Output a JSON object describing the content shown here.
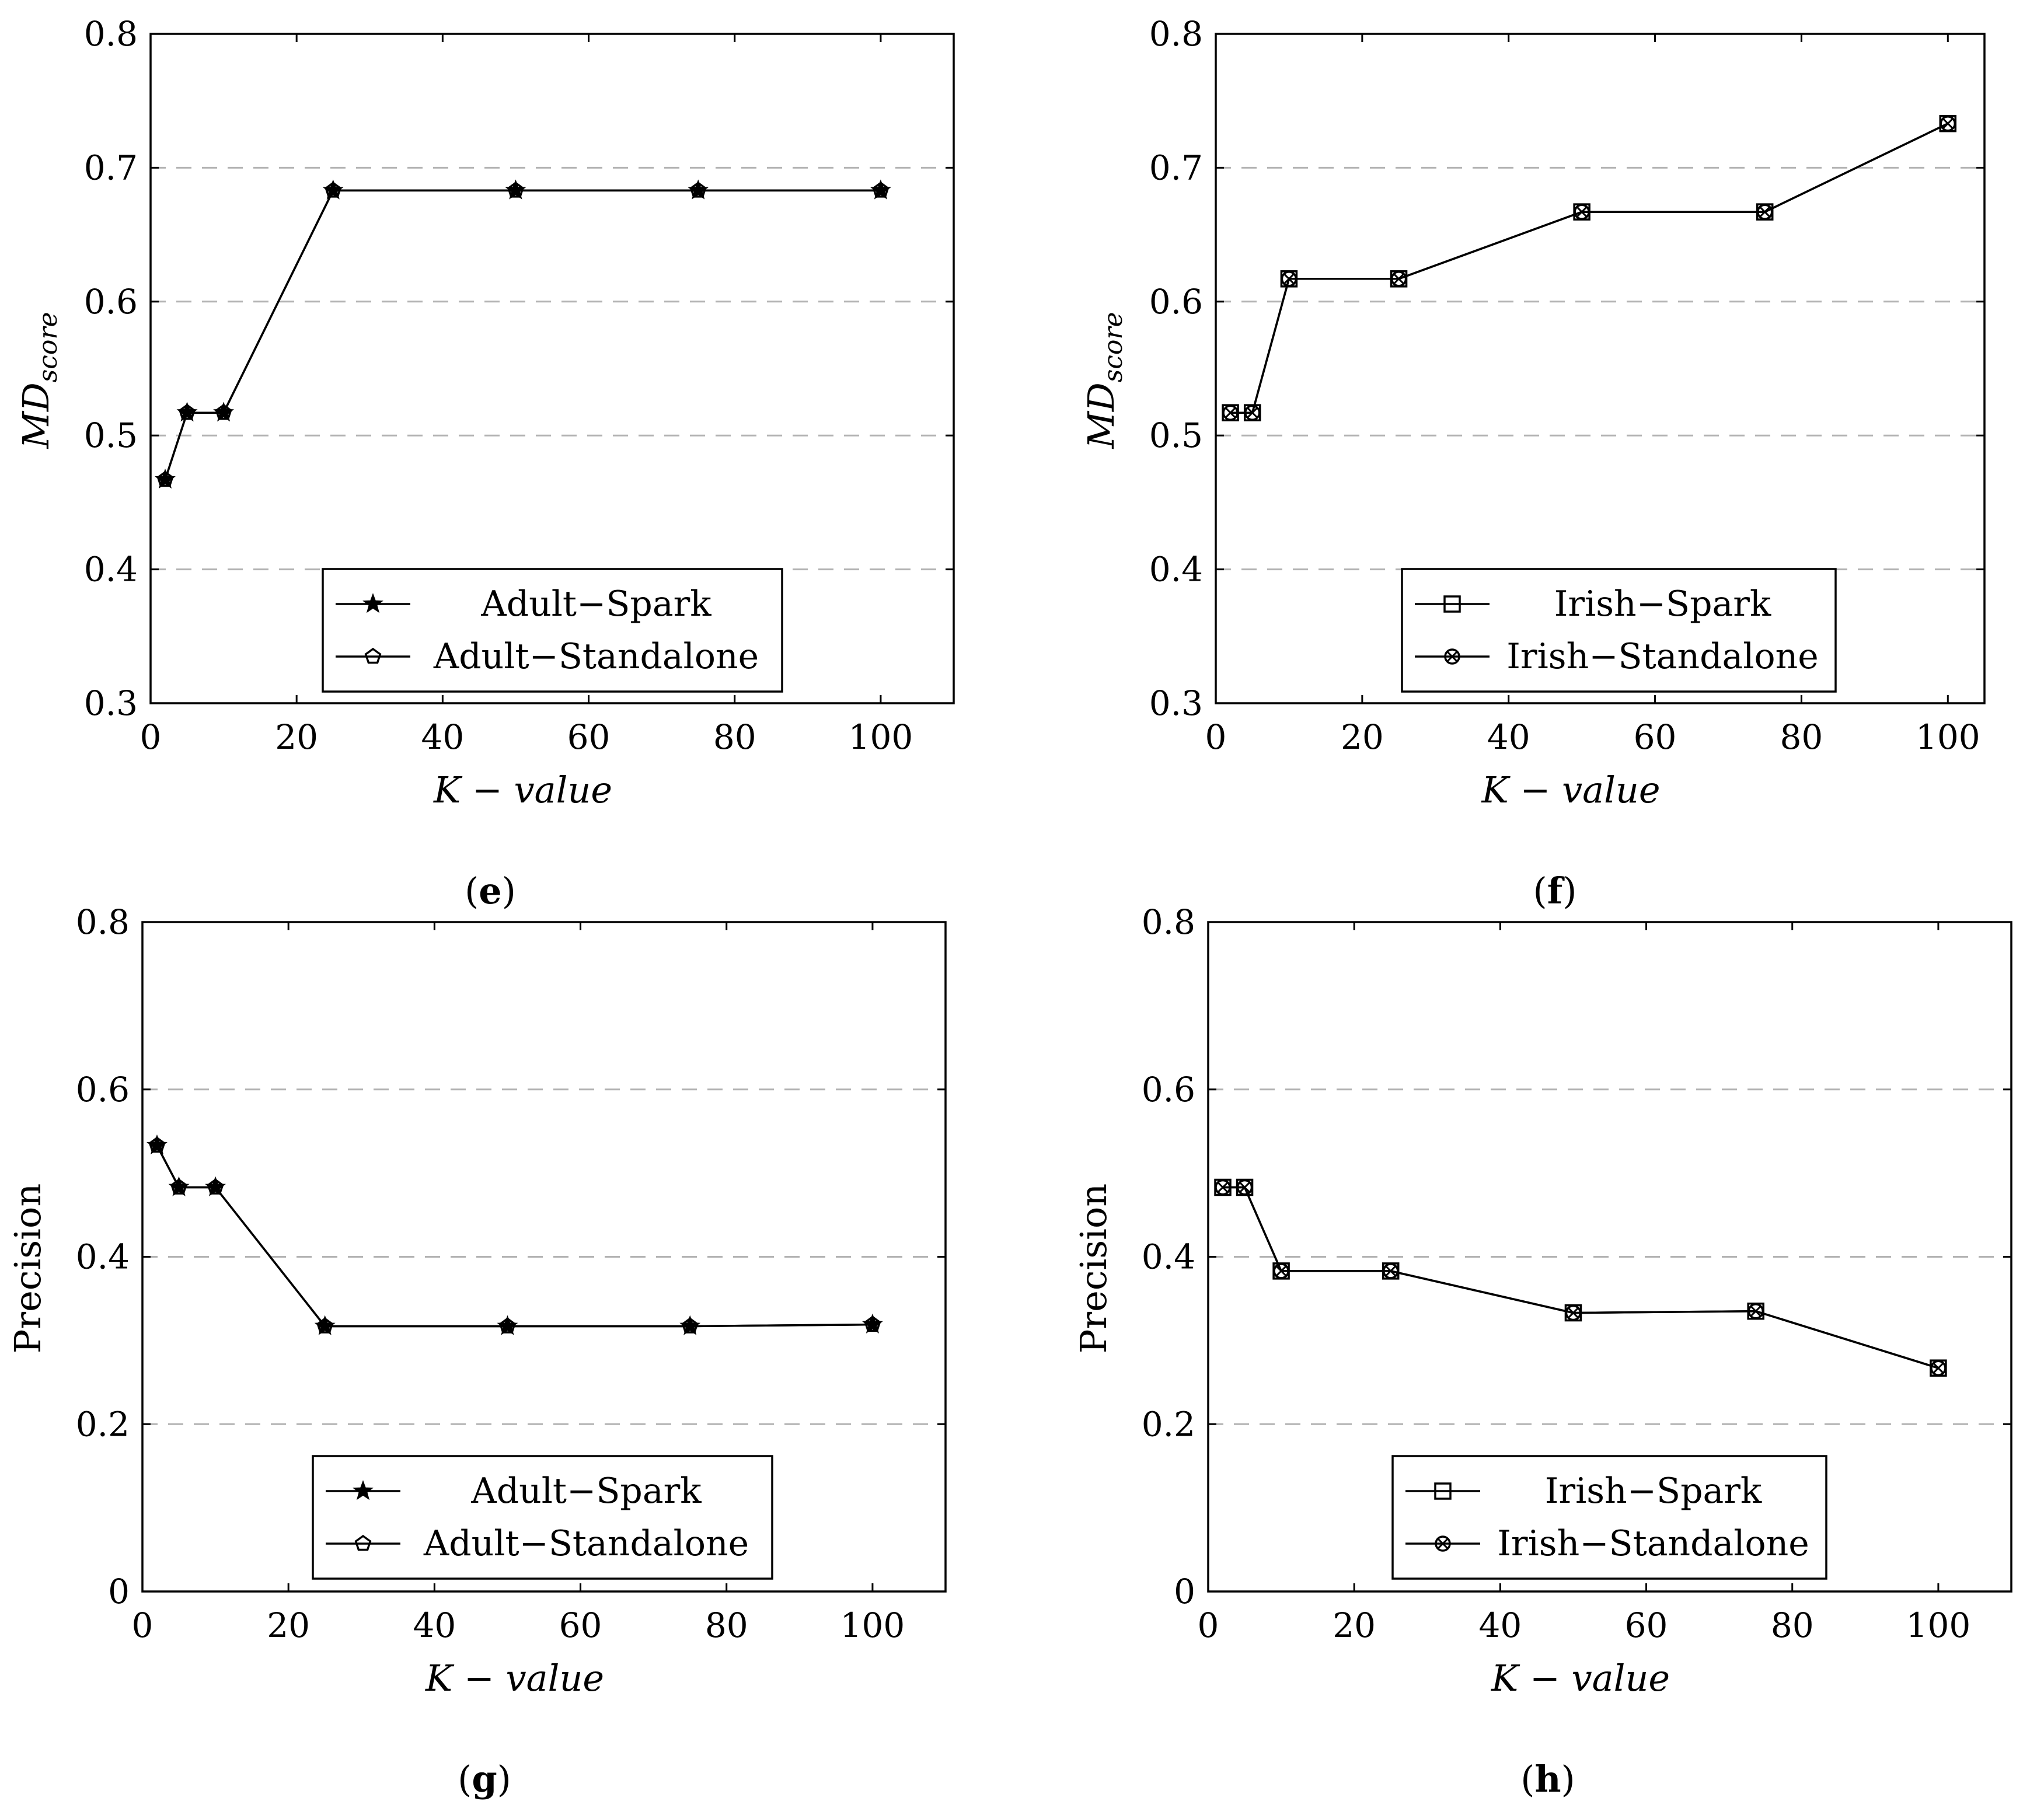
{
  "chart_data": [
    {
      "type": "line",
      "panel": "e",
      "caption_letter": "e",
      "xlabel": "K − value",
      "ylabel_main": "MD",
      "ylabel_sub": "score",
      "xlim": [
        0,
        110
      ],
      "ylim": [
        0.3,
        0.8
      ],
      "xticks": [
        0,
        20,
        40,
        60,
        80,
        100
      ],
      "yticks": [
        0.3,
        0.4,
        0.5,
        0.6,
        0.7,
        0.8
      ],
      "ytick_labels": [
        "0.3",
        "0.4",
        "0.5",
        "0.6",
        "0.7",
        "0.8"
      ],
      "grid": "horizontal-dashed",
      "legend_position": "bottom-center",
      "x": [
        2,
        5,
        10,
        25,
        50,
        75,
        100
      ],
      "series": [
        {
          "name": "Adult−Spark",
          "marker": "star",
          "values": [
            0.467,
            0.517,
            0.517,
            0.683,
            0.683,
            0.683,
            0.683
          ]
        },
        {
          "name": "Adult−Standalone",
          "marker": "pentagon",
          "values": [
            0.467,
            0.517,
            0.517,
            0.683,
            0.683,
            0.683,
            0.683
          ]
        }
      ]
    },
    {
      "type": "line",
      "panel": "f",
      "caption_letter": "f",
      "xlabel": "K − value",
      "ylabel_main": "MD",
      "ylabel_sub": "score",
      "xlim": [
        0,
        105
      ],
      "ylim": [
        0.3,
        0.8
      ],
      "xticks": [
        0,
        20,
        40,
        60,
        80,
        100
      ],
      "yticks": [
        0.3,
        0.4,
        0.5,
        0.6,
        0.7,
        0.8
      ],
      "ytick_labels": [
        "0.3",
        "0.4",
        "0.5",
        "0.6",
        "0.7",
        "0.8"
      ],
      "grid": "horizontal-dashed",
      "legend_position": "bottom-center",
      "x": [
        2,
        5,
        10,
        25,
        50,
        75,
        100
      ],
      "series": [
        {
          "name": "Irish−Spark",
          "marker": "square",
          "values": [
            0.517,
            0.517,
            0.617,
            0.617,
            0.667,
            0.667,
            0.733
          ]
        },
        {
          "name": "Irish−Standalone",
          "marker": "otimes",
          "values": [
            0.517,
            0.517,
            0.617,
            0.617,
            0.667,
            0.667,
            0.733
          ]
        }
      ]
    },
    {
      "type": "line",
      "panel": "g",
      "caption_letter": "g",
      "xlabel": "K − value",
      "ylabel": "Precision",
      "xlim": [
        0,
        110
      ],
      "ylim": [
        0,
        0.8
      ],
      "xticks": [
        0,
        20,
        40,
        60,
        80,
        100
      ],
      "yticks": [
        0,
        0.2,
        0.4,
        0.6,
        0.8
      ],
      "ytick_labels": [
        "0",
        "0.2",
        "0.4",
        "0.6",
        "0.8"
      ],
      "grid": "horizontal-dashed",
      "legend_position": "bottom-center",
      "x": [
        2,
        5,
        10,
        25,
        50,
        75,
        100
      ],
      "series": [
        {
          "name": "Adult−Spark",
          "marker": "star",
          "values": [
            0.533,
            0.483,
            0.483,
            0.317,
            0.317,
            0.317,
            0.319
          ]
        },
        {
          "name": "Adult−Standalone",
          "marker": "pentagon",
          "values": [
            0.533,
            0.483,
            0.483,
            0.317,
            0.317,
            0.317,
            0.319
          ]
        }
      ]
    },
    {
      "type": "line",
      "panel": "h",
      "caption_letter": "h",
      "xlabel": "K − value",
      "ylabel": "Precision",
      "xlim": [
        0,
        110
      ],
      "ylim": [
        0,
        0.8
      ],
      "xticks": [
        0,
        20,
        40,
        60,
        80,
        100
      ],
      "yticks": [
        0,
        0.2,
        0.4,
        0.6,
        0.8
      ],
      "ytick_labels": [
        "0",
        "0.2",
        "0.4",
        "0.6",
        "0.8"
      ],
      "grid": "horizontal-dashed",
      "legend_position": "bottom-center",
      "x": [
        2,
        5,
        10,
        25,
        50,
        75,
        100
      ],
      "series": [
        {
          "name": "Irish−Spark",
          "marker": "square",
          "values": [
            0.483,
            0.483,
            0.383,
            0.383,
            0.333,
            0.335,
            0.267
          ]
        },
        {
          "name": "Irish−Standalone",
          "marker": "otimes",
          "values": [
            0.483,
            0.483,
            0.383,
            0.383,
            0.333,
            0.335,
            0.267
          ]
        }
      ]
    }
  ],
  "colors": {
    "ink": "#000000",
    "grid": "#b3b3b3",
    "background": "#ffffff"
  }
}
